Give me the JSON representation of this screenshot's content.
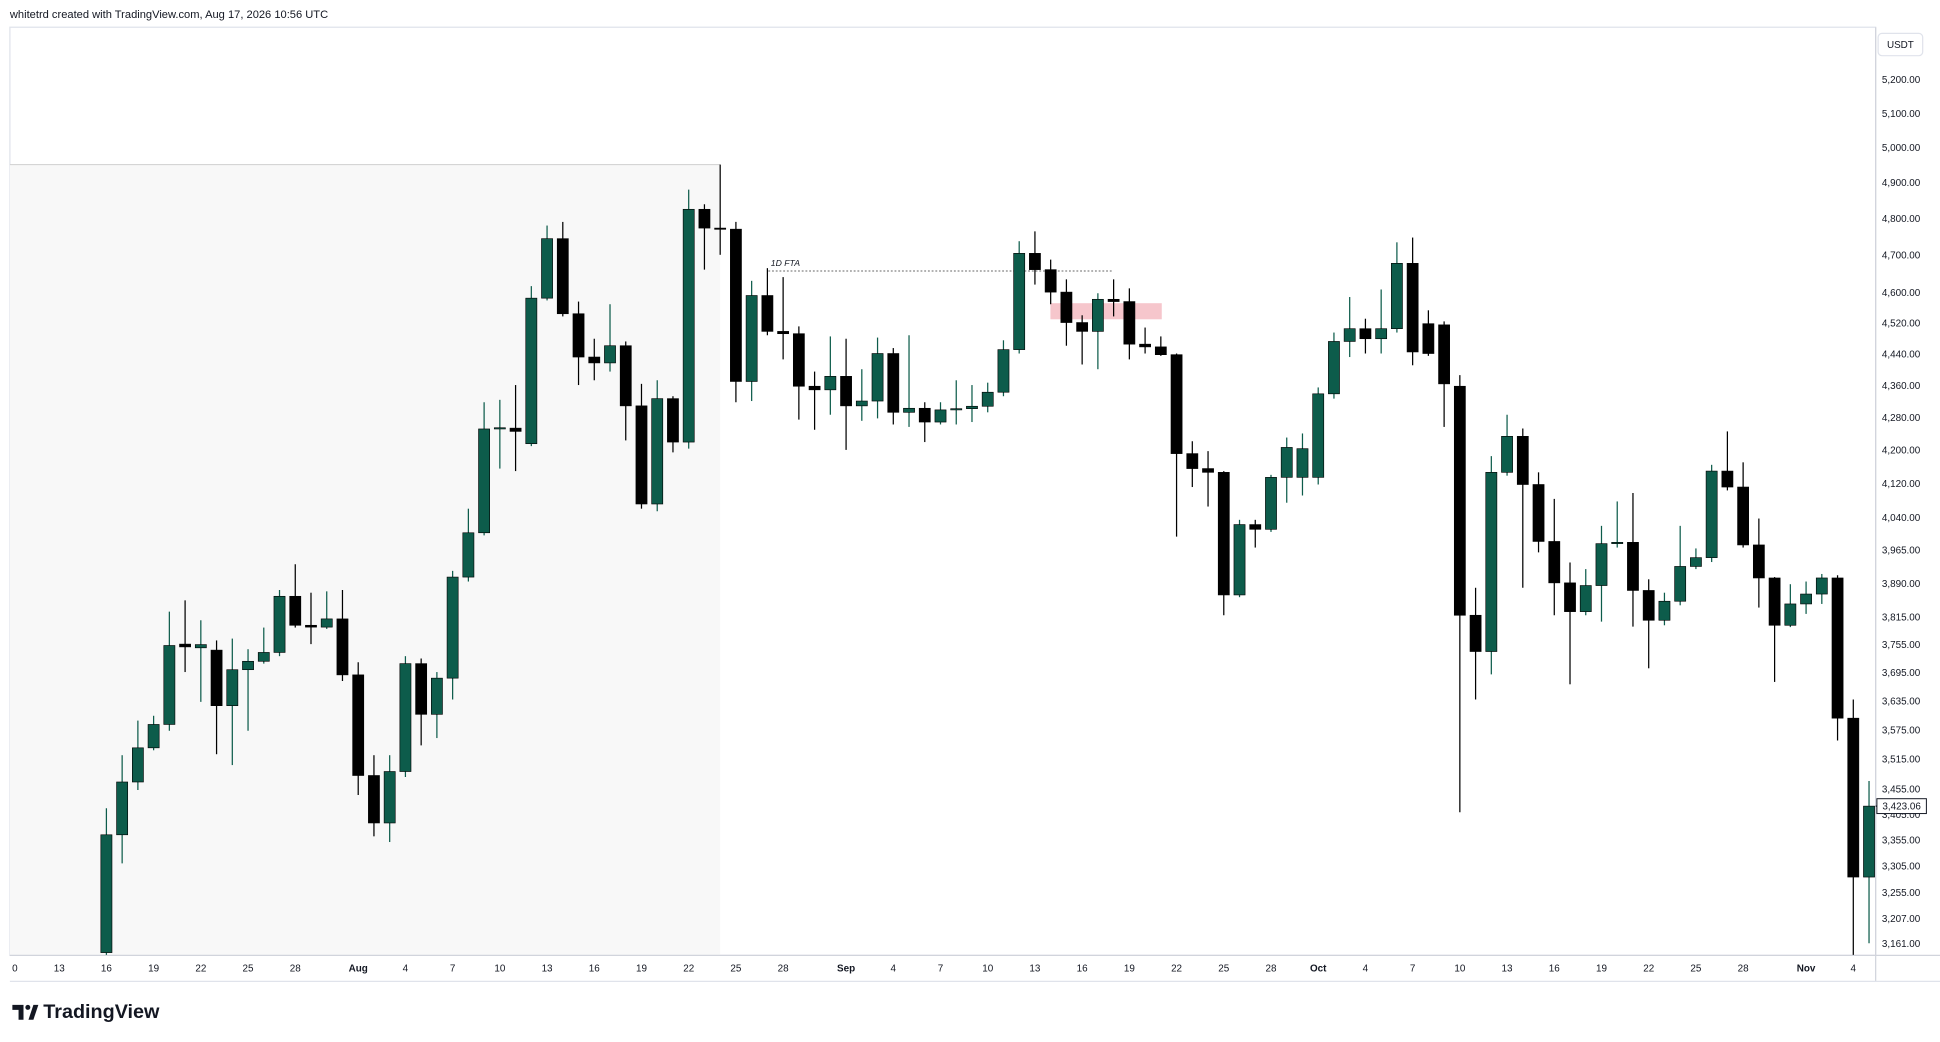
{
  "header": {
    "text": "whitetrd created with TradingView.com, Aug 17, 2026 10:56 UTC"
  },
  "footer": {
    "brand": "TradingView"
  },
  "chart_data": {
    "type": "candlestick",
    "currency": "USDT",
    "annotation": "1D FTA",
    "log_scale": true,
    "grid": false,
    "up_color": "#0d5c4b",
    "down_color": "#000000",
    "price_label": {
      "value": 3423.06,
      "label": "3,423.06"
    },
    "ylim": [
      3141,
      5362
    ],
    "yticks": [
      {
        "value": 5200,
        "label": "5,200.00"
      },
      {
        "value": 5100,
        "label": "5,100.00"
      },
      {
        "value": 5000,
        "label": "5,000.00"
      },
      {
        "value": 4900,
        "label": "4,900.00"
      },
      {
        "value": 4800,
        "label": "4,800.00"
      },
      {
        "value": 4700,
        "label": "4,700.00"
      },
      {
        "value": 4600,
        "label": "4,600.00"
      },
      {
        "value": 4520,
        "label": "4,520.00"
      },
      {
        "value": 4440,
        "label": "4,440.00"
      },
      {
        "value": 4360,
        "label": "4,360.00"
      },
      {
        "value": 4280,
        "label": "4,280.00"
      },
      {
        "value": 4200,
        "label": "4,200.00"
      },
      {
        "value": 4120,
        "label": "4,120.00"
      },
      {
        "value": 4040,
        "label": "4,040.00"
      },
      {
        "value": 3965,
        "label": "3,965.00"
      },
      {
        "value": 3890,
        "label": "3,890.00"
      },
      {
        "value": 3815,
        "label": "3,815.00"
      },
      {
        "value": 3755,
        "label": "3,755.00"
      },
      {
        "value": 3695,
        "label": "3,695.00"
      },
      {
        "value": 3635,
        "label": "3,635.00"
      },
      {
        "value": 3575,
        "label": "3,575.00"
      },
      {
        "value": 3515,
        "label": "3,515.00"
      },
      {
        "value": 3455,
        "label": "3,455.00"
      },
      {
        "value": 3405,
        "label": "3,405.00"
      },
      {
        "value": 3355,
        "label": "3,355.00"
      },
      {
        "value": 3305,
        "label": "3,305.00"
      },
      {
        "value": 3255,
        "label": "3,255.00"
      },
      {
        "value": 3207,
        "label": "3,207.00"
      },
      {
        "value": 3161,
        "label": "3,161.00"
      }
    ],
    "xticks": [
      {
        "value": "Jul 10",
        "label": "0"
      },
      {
        "value": "Jul 13",
        "label": "13"
      },
      {
        "value": "Jul 16",
        "label": "16"
      },
      {
        "value": "Jul 19",
        "label": "19"
      },
      {
        "value": "Jul 22",
        "label": "22"
      },
      {
        "value": "Jul 25",
        "label": "25"
      },
      {
        "value": "Jul 28",
        "label": "28"
      },
      {
        "value": "Aug 1",
        "label": "Aug"
      },
      {
        "value": "Aug 4",
        "label": "4"
      },
      {
        "value": "Aug 7",
        "label": "7"
      },
      {
        "value": "Aug 10",
        "label": "10"
      },
      {
        "value": "Aug 13",
        "label": "13"
      },
      {
        "value": "Aug 16",
        "label": "16"
      },
      {
        "value": "Aug 19",
        "label": "19"
      },
      {
        "value": "Aug 22",
        "label": "22"
      },
      {
        "value": "Aug 25",
        "label": "25"
      },
      {
        "value": "Aug 28",
        "label": "28"
      },
      {
        "value": "Sep 1",
        "label": "Sep"
      },
      {
        "value": "Sep 4",
        "label": "4"
      },
      {
        "value": "Sep 7",
        "label": "7"
      },
      {
        "value": "Sep 10",
        "label": "10"
      },
      {
        "value": "Sep 13",
        "label": "13"
      },
      {
        "value": "Sep 16",
        "label": "16"
      },
      {
        "value": "Sep 19",
        "label": "19"
      },
      {
        "value": "Sep 22",
        "label": "22"
      },
      {
        "value": "Sep 25",
        "label": "25"
      },
      {
        "value": "Sep 28",
        "label": "28"
      },
      {
        "value": "Oct 1",
        "label": "Oct"
      },
      {
        "value": "Oct 4",
        "label": "4"
      },
      {
        "value": "Oct 7",
        "label": "7"
      },
      {
        "value": "Oct 10",
        "label": "10"
      },
      {
        "value": "Oct 13",
        "label": "13"
      },
      {
        "value": "Oct 16",
        "label": "16"
      },
      {
        "value": "Oct 19",
        "label": "19"
      },
      {
        "value": "Oct 22",
        "label": "22"
      },
      {
        "value": "Oct 25",
        "label": "25"
      },
      {
        "value": "Oct 28",
        "label": "28"
      },
      {
        "value": "Nov 1",
        "label": "Nov"
      },
      {
        "value": "Nov 4",
        "label": "4"
      }
    ],
    "x": [
      "Jul 16",
      "Jul 17",
      "Jul 18",
      "Jul 19",
      "Jul 20",
      "Jul 21",
      "Jul 22",
      "Jul 23",
      "Jul 24",
      "Jul 25",
      "Jul 26",
      "Jul 27",
      "Jul 28",
      "Jul 29",
      "Jul 30",
      "Jul 31",
      "Aug 1",
      "Aug 2",
      "Aug 3",
      "Aug 4",
      "Aug 5",
      "Aug 6",
      "Aug 7",
      "Aug 8",
      "Aug 9",
      "Aug 10",
      "Aug 11",
      "Aug 12",
      "Aug 13",
      "Aug 14",
      "Aug 15",
      "Aug 16",
      "Aug 17",
      "Aug 18",
      "Aug 19",
      "Aug 20",
      "Aug 21",
      "Aug 22",
      "Aug 23",
      "Aug 24",
      "Aug 25",
      "Aug 26",
      "Aug 27",
      "Aug 28",
      "Aug 29",
      "Aug 30",
      "Aug 31",
      "Sep 1",
      "Sep 2",
      "Sep 3",
      "Sep 4",
      "Sep 5",
      "Sep 6",
      "Sep 7",
      "Sep 8",
      "Sep 9",
      "Sep 10",
      "Sep 11",
      "Sep 12",
      "Sep 13",
      "Sep 14",
      "Sep 15",
      "Sep 16",
      "Sep 17",
      "Sep 18",
      "Sep 19",
      "Sep 20",
      "Sep 21",
      "Sep 22",
      "Sep 23",
      "Sep 24",
      "Sep 25",
      "Sep 26",
      "Sep 27",
      "Sep 28",
      "Sep 29",
      "Sep 30",
      "Oct 1",
      "Oct 2",
      "Oct 3",
      "Oct 4",
      "Oct 5",
      "Oct 6",
      "Oct 7",
      "Oct 8",
      "Oct 9",
      "Oct 10",
      "Oct 11",
      "Oct 12",
      "Oct 13",
      "Oct 14",
      "Oct 15",
      "Oct 16",
      "Oct 17",
      "Oct 18",
      "Oct 19",
      "Oct 20",
      "Oct 21",
      "Oct 22",
      "Oct 23",
      "Oct 24",
      "Oct 25",
      "Oct 26",
      "Oct 27",
      "Oct 28",
      "Oct 29",
      "Oct 30",
      "Oct 31",
      "Nov 1",
      "Nov 2",
      "Nov 3",
      "Nov 4",
      "Nov 5"
    ],
    "open": [
      3146,
      3367,
      3471,
      3540,
      3588,
      3758,
      3750,
      3745,
      3627,
      3703,
      3721,
      3740,
      3863,
      3799,
      3795,
      3813,
      3692,
      3484,
      3390,
      3492,
      3716,
      3609,
      3685,
      3906,
      4007,
      4254,
      4256,
      4218,
      4587,
      4747,
      4546,
      4434,
      4419,
      4463,
      4311,
      4074,
      4329,
      4222,
      4828,
      4776,
      4773,
      4372,
      4594,
      4500,
      4494,
      4360,
      4351,
      4385,
      4311,
      4323,
      4443,
      4295,
      4305,
      4271,
      4301,
      4304,
      4310,
      4345,
      4453,
      4707,
      4663,
      4603,
      4523,
      4500,
      4584,
      4578,
      4467,
      4460,
      4440,
      4194,
      4158,
      4149,
      3866,
      4026,
      4015,
      4137,
      4137,
      4137,
      4341,
      4474,
      4507,
      4481,
      4507,
      4680,
      4520,
      4517,
      4360,
      3821,
      3742,
      4149,
      4236,
      4120,
      3987,
      3893,
      3829,
      3887,
      3982,
      3985,
      3876,
      3810,
      3852,
      3930,
      3950,
      4152,
      4114,
      3979,
      3904,
      3799,
      3846,
      3868,
      3904,
      3601,
      3286
    ],
    "high": [
      3419,
      3525,
      3596,
      3606,
      3829,
      3854,
      3810,
      3766,
      3770,
      3747,
      3794,
      3877,
      3935,
      3871,
      3874,
      3877,
      3719,
      3525,
      3525,
      3732,
      3727,
      3698,
      3920,
      4063,
      4320,
      4326,
      4363,
      4619,
      4783,
      4793,
      4578,
      4481,
      4571,
      4474,
      4366,
      4375,
      4335,
      4883,
      4842,
      4954,
      4793,
      4633,
      4667,
      4643,
      4513,
      4397,
      4487,
      4481,
      4403,
      4484,
      4457,
      4490,
      4320,
      4320,
      4375,
      4363,
      4369,
      4477,
      4740,
      4767,
      4690,
      4637,
      4542,
      4600,
      4637,
      4613,
      4510,
      4487,
      4443,
      4224,
      4200,
      4152,
      4037,
      4037,
      4143,
      4233,
      4243,
      4357,
      4497,
      4590,
      4533,
      4610,
      4737,
      4750,
      4555,
      4526,
      4388,
      3882,
      4188,
      4289,
      4255,
      4149,
      4086,
      3939,
      3924,
      4023,
      4080,
      4100,
      3901,
      3871,
      4023,
      3971,
      4167,
      4248,
      4173,
      4040,
      3906,
      3890,
      3896,
      3913,
      3910,
      3640,
      3473
    ],
    "low": [
      3142,
      3312,
      3455,
      3535,
      3575,
      3698,
      3635,
      3527,
      3505,
      3575,
      3716,
      3732,
      3794,
      3758,
      3791,
      3679,
      3445,
      3364,
      3353,
      3481,
      3545,
      3560,
      3640,
      3896,
      4001,
      4158,
      4152,
      4212,
      4581,
      4539,
      4363,
      4375,
      4397,
      4226,
      4063,
      4057,
      4197,
      4206,
      4663,
      4703,
      4320,
      4323,
      4490,
      4428,
      4277,
      4252,
      4289,
      4203,
      4274,
      4280,
      4265,
      4259,
      4222,
      4265,
      4265,
      4271,
      4295,
      4335,
      4443,
      4623,
      4571,
      4463,
      4415,
      4403,
      4539,
      4428,
      4443,
      4437,
      3998,
      4114,
      4068,
      3821,
      3861,
      3973,
      4009,
      4077,
      4094,
      4120,
      4329,
      4434,
      4443,
      4443,
      4497,
      4413,
      4437,
      4259,
      3411,
      3640,
      3693,
      4141,
      3882,
      3962,
      3821,
      3672,
      3821,
      3807,
      3973,
      3796,
      3706,
      3799,
      3843,
      3924,
      3940,
      4106,
      3973,
      3838,
      3677,
      3795,
      3824,
      3846,
      3555,
      3142,
      3163
    ],
    "close": [
      3367,
      3471,
      3540,
      3588,
      3755,
      3752,
      3757,
      3627,
      3703,
      3721,
      3740,
      3863,
      3799,
      3795,
      3813,
      3692,
      3484,
      3390,
      3492,
      3716,
      3609,
      3685,
      3906,
      4007,
      4254,
      4257,
      4248,
      4587,
      4747,
      4546,
      4434,
      4419,
      4463,
      4311,
      4074,
      4329,
      4222,
      4828,
      4776,
      4773,
      4372,
      4594,
      4500,
      4494,
      4360,
      4351,
      4385,
      4311,
      4323,
      4443,
      4295,
      4305,
      4271,
      4301,
      4304,
      4310,
      4345,
      4453,
      4707,
      4663,
      4603,
      4523,
      4500,
      4584,
      4578,
      4467,
      4460,
      4440,
      4194,
      4158,
      4149,
      3866,
      4026,
      4015,
      4137,
      4209,
      4206,
      4341,
      4474,
      4507,
      4481,
      4507,
      4680,
      4447,
      4443,
      4366,
      3821,
      3742,
      4149,
      4236,
      4120,
      3987,
      3893,
      3829,
      3887,
      3982,
      3985,
      3876,
      3810,
      3852,
      3930,
      3950,
      4152,
      4114,
      3979,
      3904,
      3799,
      3846,
      3868,
      3904,
      3601,
      3286,
      3423.06
    ]
  }
}
